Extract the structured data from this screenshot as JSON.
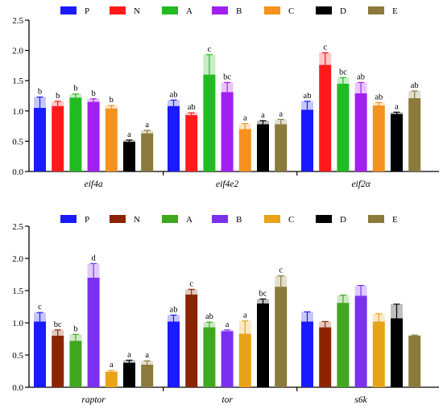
{
  "chart_data": [
    {
      "type": "bar",
      "categories": [
        "eif4a",
        "eif4e2",
        "eif2α"
      ],
      "series": [
        {
          "name": "P",
          "color": "#1a1aff",
          "values": [
            1.05,
            1.08,
            1.02
          ],
          "errors": [
            0.18,
            0.1,
            0.14
          ],
          "labels": [
            "b",
            "ab",
            "ab"
          ]
        },
        {
          "name": "N",
          "color": "#ff1a1a",
          "values": [
            1.08,
            0.93,
            1.76
          ],
          "errors": [
            0.08,
            0.04,
            0.2
          ],
          "labels": [
            "b",
            "ab",
            "c"
          ]
        },
        {
          "name": "A",
          "color": "#22bb22",
          "values": [
            1.22,
            1.6,
            1.45
          ],
          "errors": [
            0.06,
            0.33,
            0.1
          ],
          "labels": [
            "b",
            "c",
            "bc"
          ]
        },
        {
          "name": "B",
          "color": "#a020f0",
          "values": [
            1.15,
            1.31,
            1.29
          ],
          "errors": [
            0.05,
            0.16,
            0.18
          ],
          "labels": [
            "b",
            "bc",
            "ab"
          ]
        },
        {
          "name": "C",
          "color": "#f5921e",
          "values": [
            1.04,
            0.7,
            1.09
          ],
          "errors": [
            0.05,
            0.09,
            0.05
          ],
          "labels": [
            "b",
            "a",
            "ab"
          ]
        },
        {
          "name": "D",
          "color": "#000000",
          "values": [
            0.49,
            0.78,
            0.95
          ],
          "errors": [
            0.03,
            0.06,
            0.03
          ],
          "labels": [
            "a",
            "a",
            "a"
          ]
        },
        {
          "name": "E",
          "color": "#8b7a3c",
          "values": [
            0.63,
            0.78,
            1.21
          ],
          "errors": [
            0.05,
            0.08,
            0.12
          ],
          "labels": [
            "a",
            "a",
            "ab"
          ]
        }
      ],
      "yticks": [
        "0.0",
        "0.5",
        "1.0",
        "1.5",
        "2.0",
        "2.5"
      ],
      "ylim": [
        0,
        2.5
      ],
      "legend_position": "top"
    },
    {
      "type": "bar",
      "categories": [
        "raptor",
        "tor",
        "s6k"
      ],
      "series": [
        {
          "name": "P",
          "color": "#1a1aff",
          "values": [
            1.02,
            1.02,
            1.02
          ],
          "errors": [
            0.14,
            0.1,
            0.15
          ],
          "labels": [
            "c",
            "ab",
            ""
          ]
        },
        {
          "name": "N",
          "color": "#8b2500",
          "values": [
            0.8,
            1.44,
            0.93
          ],
          "errors": [
            0.09,
            0.08,
            0.09
          ],
          "labels": [
            "bc",
            "c",
            ""
          ]
        },
        {
          "name": "A",
          "color": "#3fa81e",
          "values": [
            0.72,
            0.93,
            1.31
          ],
          "errors": [
            0.1,
            0.08,
            0.12
          ],
          "labels": [
            "b",
            "ab",
            ""
          ]
        },
        {
          "name": "B",
          "color": "#7b2ff0",
          "values": [
            1.7,
            0.87,
            1.42
          ],
          "errors": [
            0.22,
            0.02,
            0.16
          ],
          "labels": [
            "d",
            "a",
            ""
          ]
        },
        {
          "name": "C",
          "color": "#e8a317",
          "values": [
            0.24,
            0.83,
            1.02
          ],
          "errors": [
            0.02,
            0.2,
            0.12
          ],
          "labels": [
            "a",
            "a",
            ""
          ]
        },
        {
          "name": "D",
          "color": "#000000",
          "values": [
            0.38,
            1.3,
            1.07
          ],
          "errors": [
            0.04,
            0.07,
            0.22
          ],
          "labels": [
            "a",
            "bc",
            ""
          ]
        },
        {
          "name": "E",
          "color": "#8b7a3c",
          "values": [
            0.35,
            1.56,
            0.8
          ],
          "errors": [
            0.06,
            0.17,
            0.01
          ],
          "labels": [
            "a",
            "c",
            ""
          ]
        }
      ],
      "yticks": [
        "0.0",
        "0.5",
        "1.0",
        "1.5",
        "2.0",
        "2.5"
      ],
      "ylim": [
        0,
        2.5
      ],
      "legend_position": "top"
    }
  ]
}
